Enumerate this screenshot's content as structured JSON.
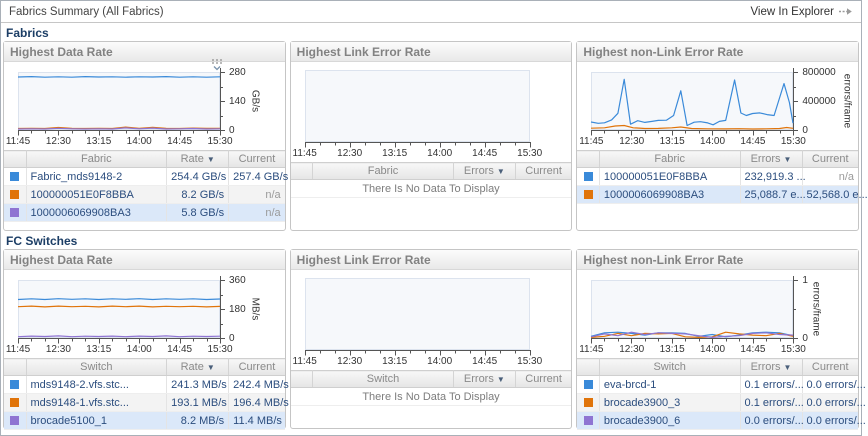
{
  "header": {
    "title": "Fabrics Summary (All Fabrics)",
    "action": "View In Explorer"
  },
  "time_labels": [
    "11:45",
    "12:30",
    "13:15",
    "14:00",
    "14:45",
    "15:30"
  ],
  "colors": {
    "series_blue": "#3a8ad9",
    "series_orange": "#e0740a",
    "series_purple": "#8f74d2",
    "selected_row": "#dbe8f9"
  },
  "sections": [
    {
      "label": "Fabrics",
      "panels": [
        {
          "title": "Highest Data Rate",
          "chart": {
            "type": "line",
            "legend_icon": true,
            "x_labels": [
              "11:45",
              "12:30",
              "13:15",
              "14:00",
              "14:45",
              "15:30"
            ],
            "xmax": 225,
            "ymin": 0,
            "ymax": 280,
            "unit": "GB/s",
            "yticks": [
              {
                "v": 0,
                "label": "0"
              },
              {
                "v": 140,
                "label": "140"
              },
              {
                "v": 280,
                "label": "280"
              }
            ],
            "series": [
              {
                "name": "Fabric_mds9148-2",
                "color": "#3a8ad9",
                "values": [
                  256,
                  258,
                  255,
                  257,
                  255,
                  258,
                  256,
                  257,
                  255,
                  257,
                  256,
                  258,
                  255,
                  257,
                  255,
                  257
                ]
              },
              {
                "name": "100000051E0F8BBA",
                "color": "#e0740a",
                "values": [
                  7,
                  8,
                  7,
                  12,
                  8,
                  7,
                  8,
                  7,
                  14,
                  8,
                  13,
                  8,
                  7,
                  9,
                  8,
                  8
                ]
              },
              {
                "name": "1000006069908BA3",
                "color": "#8f74d2",
                "values": [
                  5,
                  6,
                  5,
                  8,
                  6,
                  5,
                  6,
                  5,
                  10,
                  6,
                  9,
                  5,
                  6,
                  7,
                  5,
                  6
                ]
              }
            ]
          },
          "table": {
            "columns": [
              "",
              "Fabric",
              "Rate",
              "Current"
            ],
            "sort_col": 2,
            "rows": [
              {
                "color": "#3a8ad9",
                "name": "Fabric_mds9148-2",
                "value": "254.4 GB/s",
                "current": "257.4 GB/s"
              },
              {
                "color": "#e0740a",
                "name": "100000051E0F8BBA",
                "value": "8.2 GB/s",
                "current": "n/a"
              },
              {
                "color": "#8f74d2",
                "name": "1000006069908BA3",
                "value": "5.8 GB/s",
                "current": "n/a",
                "selected": true
              }
            ]
          }
        },
        {
          "title": "Highest Link Error Rate",
          "chart": {
            "type": "line",
            "x_labels": [
              "11:45",
              "12:30",
              "13:15",
              "14:00",
              "14:45",
              "15:30"
            ],
            "xmax": 225
          },
          "table": {
            "columns": [
              "",
              "Fabric",
              "Errors",
              "Current"
            ],
            "sort_col": 2,
            "rows": [],
            "empty_text": "There Is No Data To Display"
          }
        },
        {
          "title": "Highest non-Link Error Rate",
          "chart": {
            "type": "line",
            "x_labels": [
              "11:45",
              "12:30",
              "13:15",
              "14:00",
              "14:45",
              "15:30"
            ],
            "xmax": 225,
            "ymin": 0,
            "ymax": 800000,
            "unit": "errors/frame",
            "yticks": [
              {
                "v": 0,
                "label": "0"
              },
              {
                "v": 400000,
                "label": "400000"
              },
              {
                "v": 800000,
                "label": "800000"
              }
            ],
            "series": [
              {
                "name": "100000051E0F8BBA",
                "color": "#3a8ad9",
                "points": [
                  [
                    0,
                    110000
                  ],
                  [
                    8,
                    92000
                  ],
                  [
                    15,
                    100000
                  ],
                  [
                    23,
                    140000
                  ],
                  [
                    30,
                    230000
                  ],
                  [
                    37,
                    700000
                  ],
                  [
                    44,
                    80000
                  ],
                  [
                    52,
                    128000
                  ],
                  [
                    60,
                    105000
                  ],
                  [
                    68,
                    118000
                  ],
                  [
                    75,
                    132000
                  ],
                  [
                    84,
                    135000
                  ],
                  [
                    92,
                    200000
                  ],
                  [
                    100,
                    540000
                  ],
                  [
                    107,
                    62000
                  ],
                  [
                    115,
                    108000
                  ],
                  [
                    122,
                    115000
                  ],
                  [
                    130,
                    98000
                  ],
                  [
                    136,
                    72000
                  ],
                  [
                    143,
                    118000
                  ],
                  [
                    150,
                    132000
                  ],
                  [
                    160,
                    690000
                  ],
                  [
                    167,
                    235000
                  ],
                  [
                    173,
                    200000
                  ],
                  [
                    180,
                    228000
                  ],
                  [
                    188,
                    236000
                  ],
                  [
                    196,
                    212000
                  ],
                  [
                    204,
                    200000
                  ],
                  [
                    215,
                    640000
                  ],
                  [
                    221,
                    380000
                  ],
                  [
                    225,
                    95000
                  ]
                ]
              },
              {
                "name": "1000006069908BA3",
                "color": "#e0740a",
                "points": [
                  [
                    0,
                    25000
                  ],
                  [
                    15,
                    30000
                  ],
                  [
                    27,
                    55000
                  ],
                  [
                    37,
                    62000
                  ],
                  [
                    47,
                    30000
                  ],
                  [
                    60,
                    20000
                  ],
                  [
                    75,
                    22000
                  ],
                  [
                    90,
                    30000
                  ],
                  [
                    100,
                    42000
                  ],
                  [
                    112,
                    20000
                  ],
                  [
                    130,
                    16000
                  ],
                  [
                    150,
                    15000
                  ],
                  [
                    165,
                    18000
                  ],
                  [
                    180,
                    14000
                  ],
                  [
                    195,
                    16000
                  ],
                  [
                    210,
                    20000
                  ],
                  [
                    218,
                    35000
                  ],
                  [
                    225,
                    24000
                  ]
                ]
              }
            ]
          },
          "table": {
            "columns": [
              "",
              "Fabric",
              "Errors",
              "Current"
            ],
            "sort_col": 2,
            "rows": [
              {
                "color": "#3a8ad9",
                "name": "100000051E0F8BBA",
                "value": "232,919.3 ...",
                "current": "n/a"
              },
              {
                "color": "#e0740a",
                "name": "1000006069908BA3",
                "value": "25,088.7 e...",
                "current": "52,568.0 e...",
                "selected": true
              }
            ]
          }
        }
      ]
    },
    {
      "label": "FC Switches",
      "panels": [
        {
          "title": "Highest Data Rate",
          "chart": {
            "type": "line",
            "x_labels": [
              "11:45",
              "12:30",
              "13:15",
              "14:00",
              "14:45",
              "15:30"
            ],
            "xmax": 225,
            "ymin": 0,
            "ymax": 360,
            "unit": "MB/s",
            "yticks": [
              {
                "v": 0,
                "label": "0"
              },
              {
                "v": 180,
                "label": "180"
              },
              {
                "v": 360,
                "label": "360"
              }
            ],
            "series": [
              {
                "name": "mds9148-2.vfs.stc...",
                "color": "#3a8ad9",
                "values": [
                  239,
                  243,
                  239,
                  244,
                  240,
                  243,
                  239,
                  243,
                  240,
                  244,
                  239,
                  243,
                  240,
                  243,
                  239,
                  242
                ]
              },
              {
                "name": "mds9148-1.vfs.stc...",
                "color": "#e0740a",
                "values": [
                  194,
                  198,
                  193,
                  198,
                  194,
                  197,
                  193,
                  198,
                  194,
                  198,
                  193,
                  197,
                  194,
                  197,
                  193,
                  196
                ]
              },
              {
                "name": "brocade5100_1",
                "color": "#8f74d2",
                "values": [
                  8,
                  12,
                  9,
                  13,
                  8,
                  11,
                  9,
                  12,
                  8,
                  12,
                  9,
                  13,
                  8,
                  11,
                  9,
                  11
                ]
              }
            ]
          },
          "table": {
            "columns": [
              "",
              "Switch",
              "Rate",
              "Current"
            ],
            "sort_col": 2,
            "rows": [
              {
                "color": "#3a8ad9",
                "name": "mds9148-2.vfs.stc...",
                "value": "241.3 MB/s",
                "current": "242.4 MB/s"
              },
              {
                "color": "#e0740a",
                "name": "mds9148-1.vfs.stc...",
                "value": "193.1 MB/s",
                "current": "196.4 MB/s"
              },
              {
                "color": "#8f74d2",
                "name": "brocade5100_1",
                "value": "8.2 MB/s",
                "current": "11.4 MB/s",
                "selected": true
              }
            ]
          }
        },
        {
          "title": "Highest Link Error Rate",
          "chart": {
            "type": "line",
            "x_labels": [
              "11:45",
              "12:30",
              "13:15",
              "14:00",
              "14:45",
              "15:30"
            ],
            "xmax": 225
          },
          "table": {
            "columns": [
              "",
              "Switch",
              "Errors",
              "Current"
            ],
            "sort_col": 2,
            "rows": [],
            "empty_text": "There Is No Data To Display"
          }
        },
        {
          "title": "Highest non-Link Error Rate",
          "chart": {
            "type": "line",
            "x_labels": [
              "11:45",
              "12:30",
              "13:15",
              "14:00",
              "14:45",
              "15:30"
            ],
            "xmax": 225,
            "ymin": 0,
            "ymax": 1,
            "unit": "errors/frame",
            "yticks": [
              {
                "v": 0,
                "label": "0"
              },
              {
                "v": 1,
                "label": "1"
              }
            ],
            "series": [
              {
                "name": "eva-brcd-1",
                "color": "#3a8ad9",
                "values": [
                  0.03,
                  0.09,
                  0.1,
                  0.08,
                  0.05,
                  0.09,
                  0.09,
                  0.08,
                  0.03,
                  0.06,
                  0.02,
                  0.05,
                  0.09,
                  0.1,
                  0.09,
                  0.04
                ]
              },
              {
                "name": "brocade3900_3",
                "color": "#e0740a",
                "values": [
                  0.01,
                  0.03,
                  0.08,
                  0.04,
                  0.08,
                  0.07,
                  0.08,
                  0.02,
                  0.01,
                  0.02,
                  0.1,
                  0.07,
                  0.05,
                  0.04,
                  0.08,
                  0.03
                ]
              },
              {
                "name": "brocade3900_6",
                "color": "#8f74d2",
                "values": [
                  0.02,
                  0.07,
                  0.04,
                  0.1,
                  0.06,
                  0.09,
                  0.08,
                  0.07,
                  0.04,
                  0.01,
                  0.03,
                  0.04,
                  0.08,
                  0.09,
                  0.06,
                  0.05
                ]
              }
            ]
          },
          "table": {
            "columns": [
              "",
              "Switch",
              "Errors",
              "Current"
            ],
            "sort_col": 2,
            "rows": [
              {
                "color": "#3a8ad9",
                "name": "eva-brcd-1",
                "value": "0.1 errors/...",
                "current": "0.0 errors/..."
              },
              {
                "color": "#e0740a",
                "name": "brocade3900_3",
                "value": "0.1 errors/...",
                "current": "0.0 errors/..."
              },
              {
                "color": "#8f74d2",
                "name": "brocade3900_6",
                "value": "0.0 errors/...",
                "current": "0.0 errors/...",
                "selected": true
              }
            ]
          }
        }
      ]
    }
  ]
}
